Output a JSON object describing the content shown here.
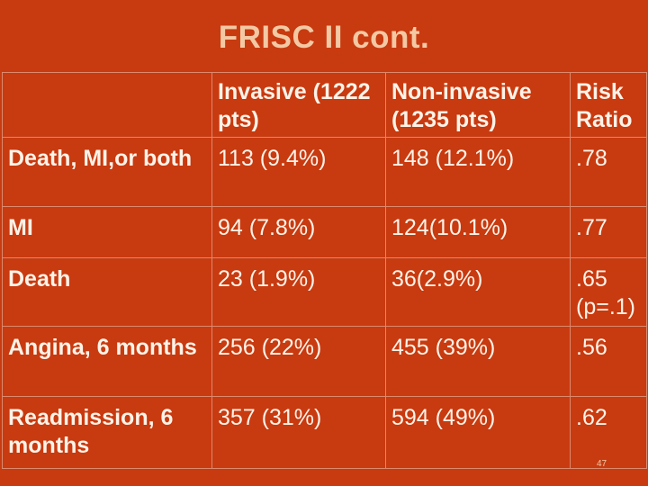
{
  "title": "FRISC II cont.",
  "columns": {
    "invasive": "Invasive (1222 pts)",
    "noninvasive": "Non-invasive (1235 pts)",
    "risk_ratio": "Risk Ratio"
  },
  "rows": [
    {
      "label": "Death, MI,or both",
      "invasive": "113 (9.4%)",
      "noninvasive": "148 (12.1%)",
      "risk_ratio": ".78"
    },
    {
      "label": "MI",
      "invasive": "94 (7.8%)",
      "noninvasive": "124(10.1%)",
      "risk_ratio": ".77"
    },
    {
      "label": "Death",
      "invasive": "23 (1.9%)",
      "noninvasive": "36(2.9%)",
      "risk_ratio": ".65 (p=.1)"
    },
    {
      "label": "Angina, 6 months",
      "invasive": "256 (22%)",
      "noninvasive": "455 (39%)",
      "risk_ratio": ".56"
    },
    {
      "label": "Readmission, 6 months",
      "invasive": "357 (31%)",
      "noninvasive": "594 (49%)",
      "risk_ratio": ".62"
    }
  ],
  "page_number": "47"
}
